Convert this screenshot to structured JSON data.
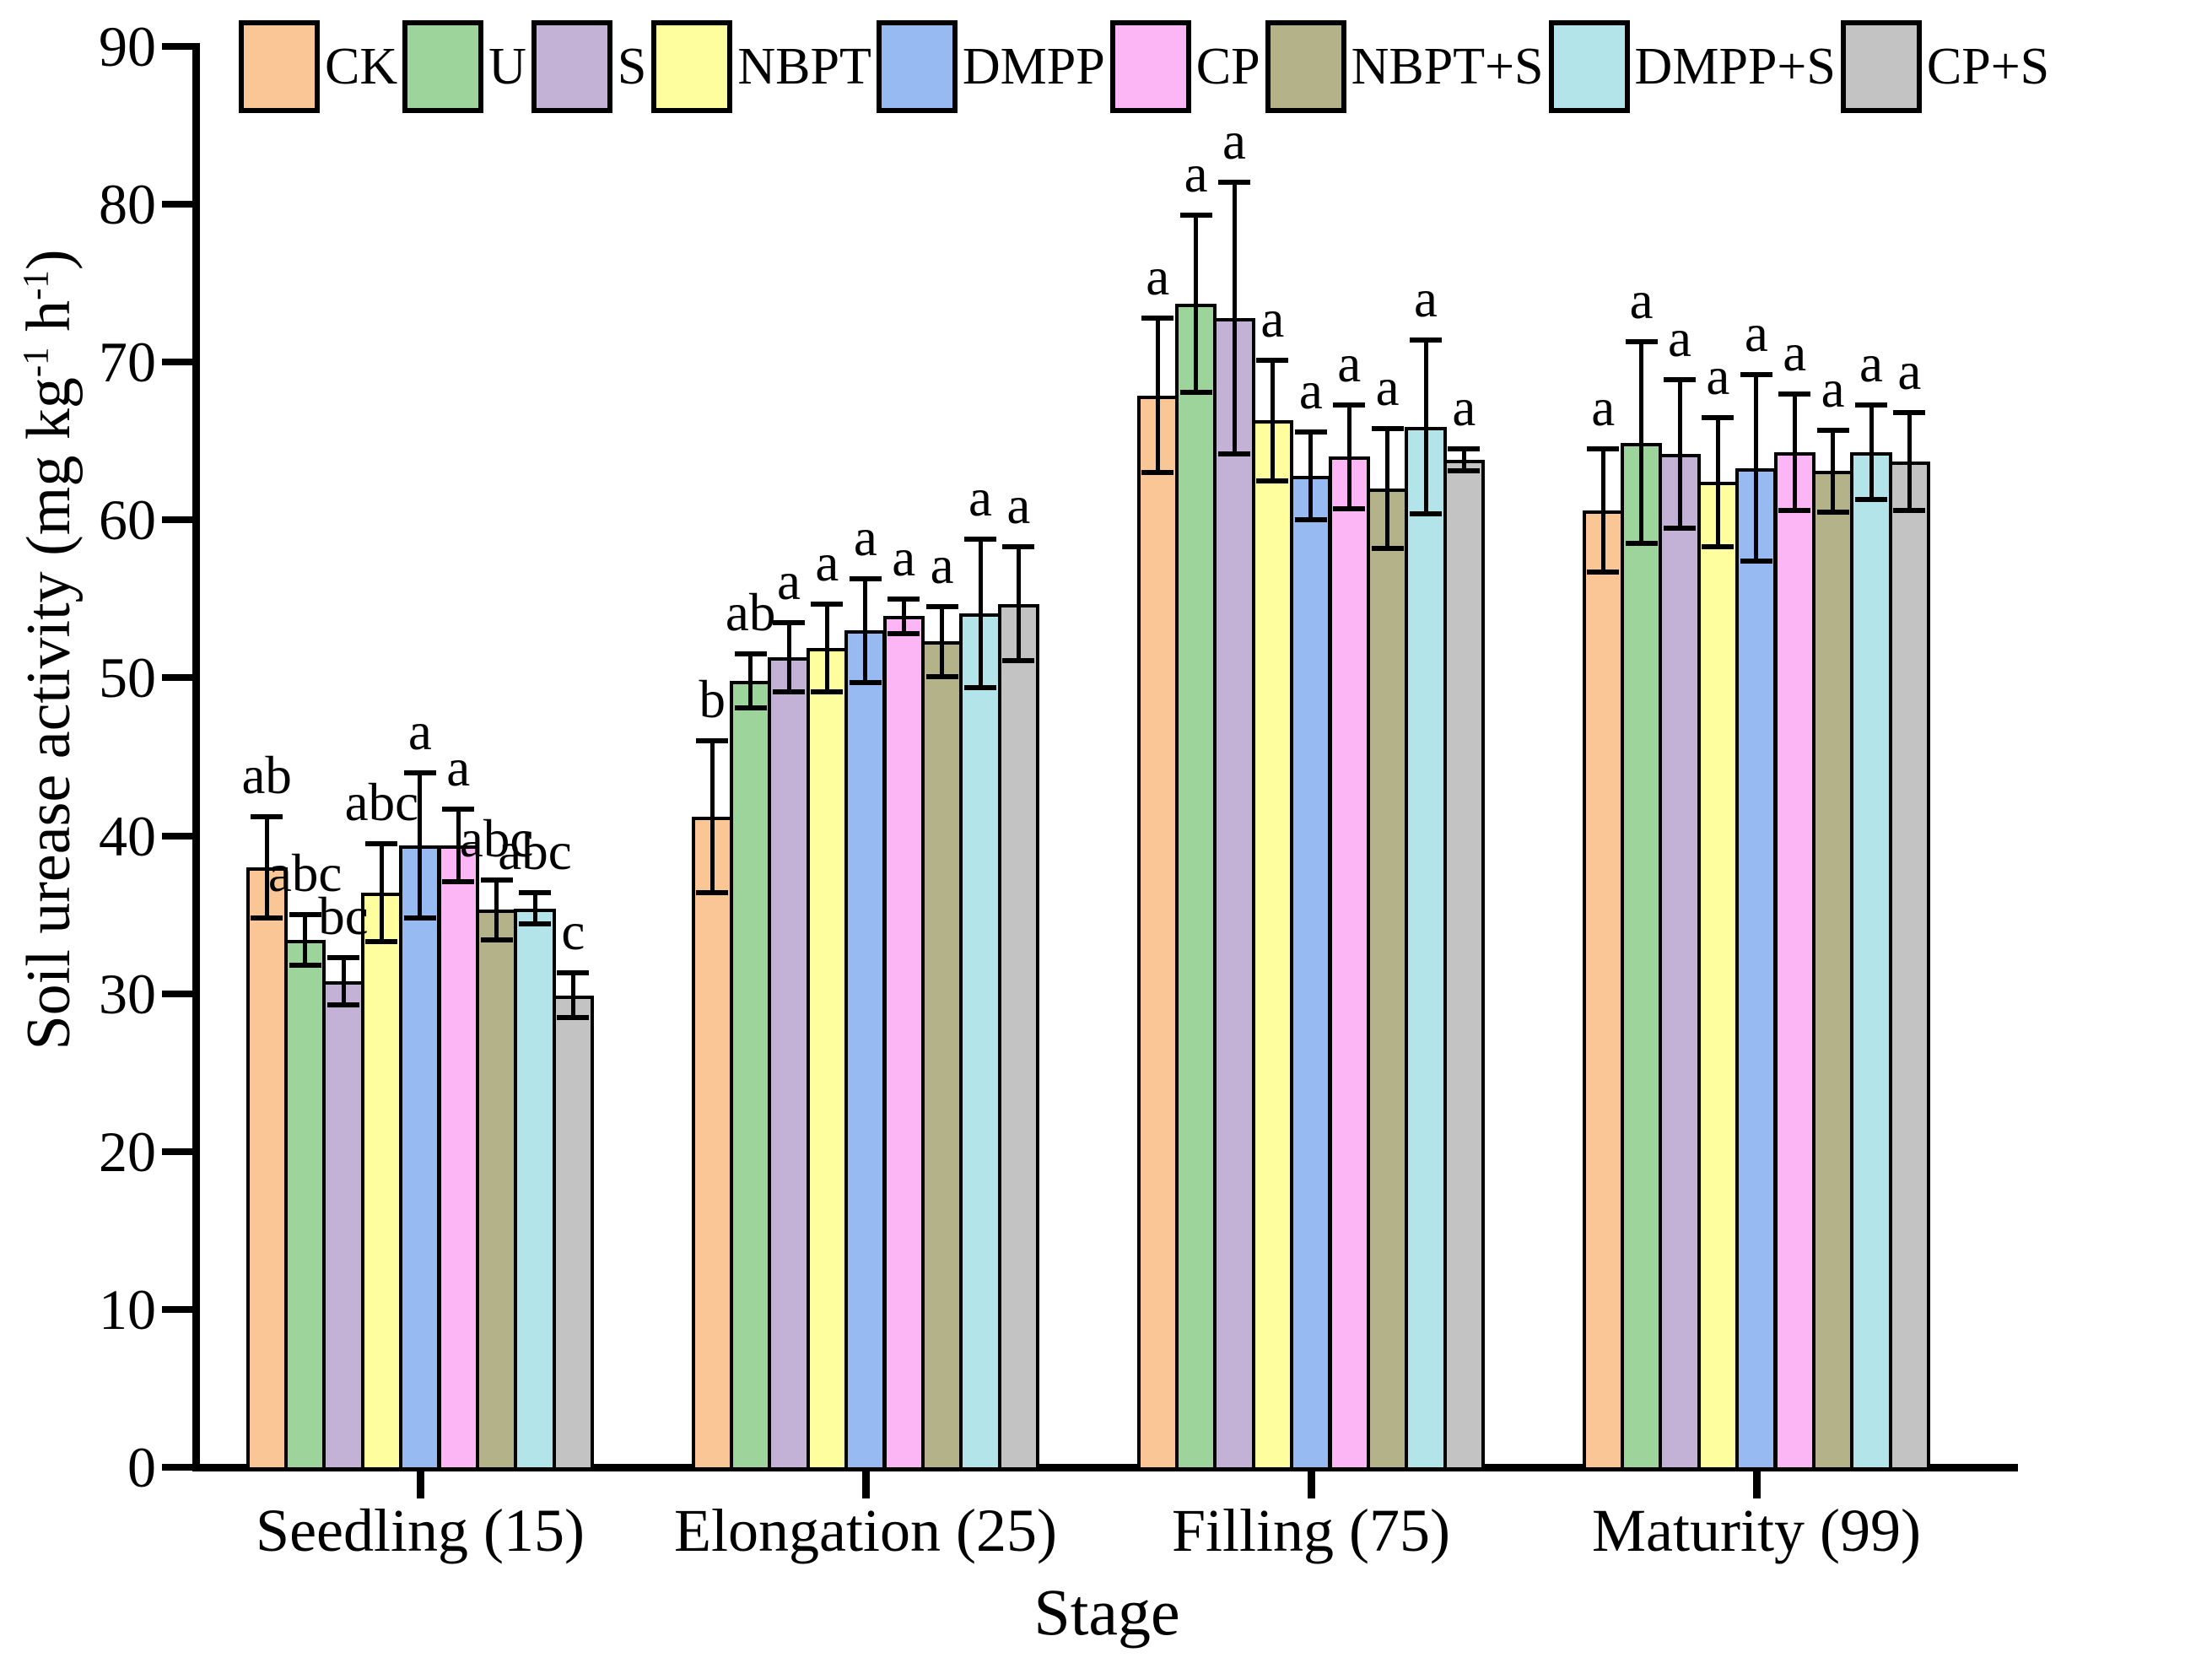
{
  "figure": {
    "background": "#FFFFFF"
  },
  "chart_data": {
    "type": "bar",
    "title": "",
    "xlabel": "Stage",
    "ylabel": "Soil urease activity (mg kg⁻¹ h⁻¹)",
    "ylim": [
      0,
      90
    ],
    "yticks": [
      0,
      10,
      20,
      30,
      40,
      50,
      60,
      70,
      80,
      90
    ],
    "grid": false,
    "legend_position": "top",
    "error_bars": true,
    "categories": [
      "Seedling (15)",
      "Elongation (25)",
      "Filling (75)",
      "Maturity (99)"
    ],
    "series": [
      {
        "name": "CK",
        "color": "#FAC696",
        "values": [
          38.0,
          41.2,
          67.9,
          60.6
        ],
        "errors": [
          3.2,
          4.8,
          4.9,
          3.9
        ],
        "sig_letters": [
          "ab",
          "b",
          "a",
          "a"
        ]
      },
      {
        "name": "U",
        "color": "#9CD49B",
        "values": [
          33.4,
          49.8,
          73.7,
          64.9
        ],
        "errors": [
          1.6,
          1.7,
          5.6,
          6.4
        ],
        "sig_letters": [
          "abc",
          "ab",
          "a",
          "a"
        ]
      },
      {
        "name": "S",
        "color": "#C3B1D6",
        "values": [
          30.8,
          51.3,
          72.8,
          64.2
        ],
        "errors": [
          1.5,
          2.2,
          8.6,
          4.7
        ],
        "sig_letters": [
          "bc",
          "a",
          "a",
          "a"
        ]
      },
      {
        "name": "NBPT",
        "color": "#FEFE9F",
        "values": [
          36.4,
          51.9,
          66.3,
          62.4
        ],
        "errors": [
          3.1,
          2.8,
          3.8,
          4.1
        ],
        "sig_letters": [
          "abc",
          "a",
          "a",
          "a"
        ]
      },
      {
        "name": "DMPP",
        "color": "#98BAF2",
        "values": [
          39.4,
          53.0,
          62.8,
          63.3
        ],
        "errors": [
          4.6,
          3.3,
          2.8,
          5.9
        ],
        "sig_letters": [
          "a",
          "a",
          "a",
          "a"
        ]
      },
      {
        "name": "CP",
        "color": "#FDB6F5",
        "values": [
          39.4,
          53.9,
          64.0,
          64.3
        ],
        "errors": [
          2.3,
          1.1,
          3.3,
          3.7
        ],
        "sig_letters": [
          "a",
          "a",
          "a",
          "a"
        ]
      },
      {
        "name": "NBPT+S",
        "color": "#B3B289",
        "values": [
          35.3,
          52.3,
          62.0,
          63.1
        ],
        "errors": [
          1.9,
          2.2,
          3.8,
          2.6
        ],
        "sig_letters": [
          "abc",
          "a",
          "a",
          "a"
        ]
      },
      {
        "name": "DMPP+S",
        "color": "#B3E4E9",
        "values": [
          35.4,
          54.1,
          65.9,
          64.3
        ],
        "errors": [
          1.0,
          4.7,
          5.5,
          3.0
        ],
        "sig_letters": [
          "abc",
          "a",
          "a",
          "a"
        ]
      },
      {
        "name": "CP+S",
        "color": "#C3C3C3",
        "values": [
          29.9,
          54.7,
          63.8,
          63.7
        ],
        "errors": [
          1.4,
          3.6,
          0.7,
          3.1
        ],
        "sig_letters": [
          "c",
          "a",
          "a",
          "a"
        ]
      }
    ]
  }
}
